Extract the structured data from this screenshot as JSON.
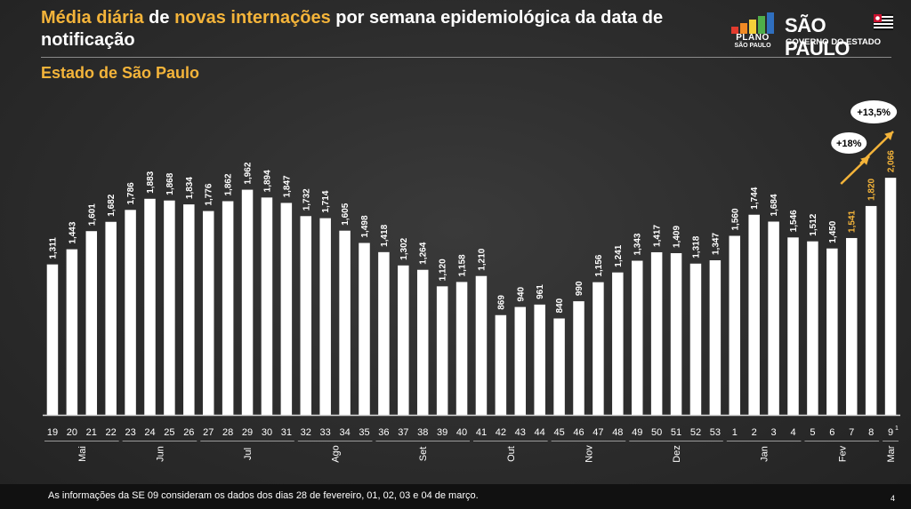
{
  "title": {
    "part1": "Média diária",
    "part2": " de ",
    "part3": "novas internações",
    "part4": " por semana epidemiológica da data de notificação"
  },
  "subtitle": "Estado de São Paulo",
  "logos": {
    "plano_line1": "PLANO",
    "plano_line2": "SÃO PAULO",
    "sp_line1": "SÃO PAULO",
    "sp_line2": "GOVERNO DO ESTADO"
  },
  "footer": {
    "note": "As informações da SE 09 consideram os dados dos dias 28 de fevereiro, 01, 02, 03 e 04 de março.",
    "page": "4"
  },
  "colors": {
    "background": "#2b2b2b",
    "bar": "#ffffff",
    "highlight": "#f4b43a",
    "text": "#ffffff"
  },
  "chart_data": {
    "type": "bar",
    "title": "",
    "xlabel": "",
    "ylabel": "",
    "ylim": [
      0,
      2400
    ],
    "categories": [
      "19",
      "20",
      "21",
      "22",
      "23",
      "24",
      "25",
      "26",
      "27",
      "28",
      "29",
      "30",
      "31",
      "32",
      "33",
      "34",
      "35",
      "36",
      "37",
      "38",
      "39",
      "40",
      "41",
      "42",
      "43",
      "44",
      "45",
      "46",
      "47",
      "48",
      "49",
      "50",
      "51",
      "52",
      "53",
      "1",
      "2",
      "3",
      "4",
      "5",
      "6",
      "7",
      "8",
      "9"
    ],
    "values": [
      1311,
      1443,
      1601,
      1682,
      1786,
      1883,
      1868,
      1834,
      1776,
      1862,
      1962,
      1894,
      1847,
      1732,
      1714,
      1605,
      1498,
      1418,
      1302,
      1264,
      1120,
      1158,
      1210,
      869,
      940,
      961,
      840,
      990,
      1156,
      1241,
      1343,
      1417,
      1409,
      1318,
      1347,
      1560,
      1744,
      1684,
      1546,
      1512,
      1450,
      1541,
      1820,
      2066
    ],
    "labels": [
      "1,311",
      "1,443",
      "1,601",
      "1,682",
      "1,786",
      "1,883",
      "1,868",
      "1,834",
      "1,776",
      "1,862",
      "1,962",
      "1,894",
      "1,847",
      "1,732",
      "1,714",
      "1,605",
      "1,498",
      "1,418",
      "1,302",
      "1,264",
      "1,120",
      "1,158",
      "1,210",
      "869",
      "940",
      "961",
      "840",
      "990",
      "1,156",
      "1,241",
      "1,343",
      "1,417",
      "1,409",
      "1,318",
      "1,347",
      "1,560",
      "1,744",
      "1,684",
      "1,546",
      "1,512",
      "1,450",
      "1,541",
      "1,820",
      "2,066"
    ],
    "highlight_label_indices": [
      41,
      42,
      43
    ],
    "last_label_suffix": "1",
    "months": [
      {
        "name": "Mai",
        "start": 0,
        "end": 3
      },
      {
        "name": "Jun",
        "start": 4,
        "end": 7
      },
      {
        "name": "Jul",
        "start": 8,
        "end": 12
      },
      {
        "name": "Ago",
        "start": 13,
        "end": 16
      },
      {
        "name": "Set",
        "start": 17,
        "end": 21
      },
      {
        "name": "Out",
        "start": 22,
        "end": 25
      },
      {
        "name": "Nov",
        "start": 26,
        "end": 29
      },
      {
        "name": "Dez",
        "start": 30,
        "end": 34
      },
      {
        "name": "Jan",
        "start": 35,
        "end": 38
      },
      {
        "name": "Fev",
        "start": 39,
        "end": 42
      },
      {
        "name": "Mar",
        "start": 43,
        "end": 43
      }
    ],
    "annotations": [
      {
        "text": "+18%",
        "from_index": 41,
        "to_index": 42
      },
      {
        "text": "+13,5%",
        "from_index": 42,
        "to_index": 43
      }
    ]
  }
}
